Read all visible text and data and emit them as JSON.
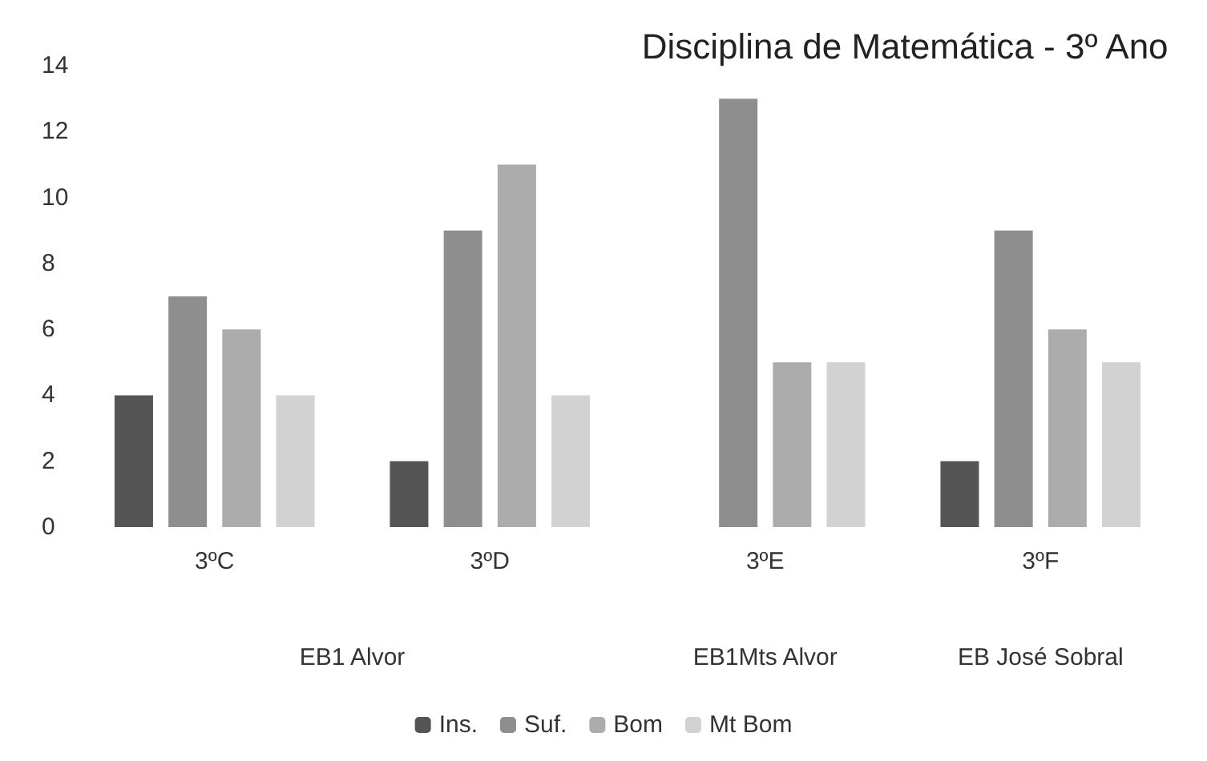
{
  "chart_data": {
    "type": "bar",
    "title": "Disciplina de Matemática - 3º Ano",
    "categories": [
      "3ºC",
      "3ºD",
      "3ºE",
      "3ºF"
    ],
    "series": [
      {
        "name": "Ins.",
        "color": "#555555",
        "values": [
          4,
          2,
          0,
          2
        ]
      },
      {
        "name": "Suf.",
        "color": "#8e8e8e",
        "values": [
          7,
          9,
          13,
          9
        ]
      },
      {
        "name": "Bom",
        "color": "#acacac",
        "values": [
          6,
          11,
          5,
          6
        ]
      },
      {
        "name": "Mt Bom",
        "color": "#d2d2d2",
        "values": [
          4,
          4,
          5,
          5
        ]
      }
    ],
    "annotations": [
      "EB1 Alvor",
      "EB1Mts Alvor",
      "EB José Sobral"
    ],
    "ylim": [
      0,
      14
    ],
    "yticks": [
      0,
      2,
      4,
      6,
      8,
      10,
      12,
      14
    ],
    "grid": false,
    "legend": "bottom"
  }
}
